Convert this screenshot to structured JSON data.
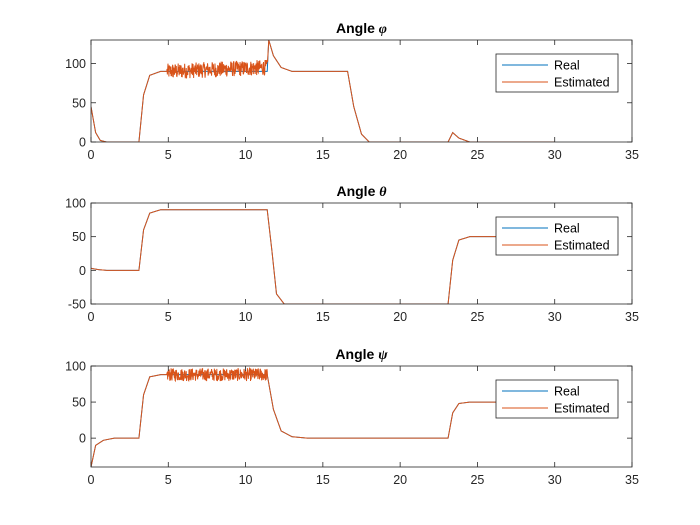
{
  "chart_data": [
    {
      "type": "line",
      "title_prefix": "Angle ",
      "title_symbol": "φ",
      "xlim": [
        0,
        35
      ],
      "ylim": [
        0,
        130
      ],
      "xticks": [
        0,
        5,
        10,
        15,
        20,
        25,
        30,
        35
      ],
      "yticks": [
        0,
        50,
        100
      ],
      "legend": [
        "Real",
        "Estimated"
      ],
      "legend_position": "top-right",
      "series": [
        {
          "name": "Real",
          "color": "#0072BD",
          "x": [
            0,
            0.3,
            0.6,
            1.0,
            3.1,
            3.4,
            3.8,
            4.5,
            5.0,
            11.4,
            11.5,
            11.8,
            12.3,
            13.0,
            16.6,
            17.0,
            17.5,
            18.0,
            23.1,
            23.4,
            23.8,
            24.5,
            30
          ],
          "y": [
            45,
            12,
            2,
            0,
            0,
            60,
            85,
            90,
            90,
            90,
            130,
            110,
            95,
            90,
            90,
            45,
            10,
            0,
            0,
            12,
            5,
            0,
            0
          ]
        },
        {
          "name": "Estimated",
          "color": "#D95319",
          "noise": {
            "x_range": [
              4.9,
              11.4
            ],
            "amplitude": 20
          },
          "x": [
            0,
            0.3,
            0.6,
            1.0,
            3.1,
            3.4,
            3.8,
            4.5,
            5.0,
            11.4,
            11.5,
            11.8,
            12.3,
            13.0,
            16.6,
            17.0,
            17.5,
            18.0,
            23.1,
            23.4,
            23.8,
            24.5,
            30
          ],
          "y": [
            45,
            12,
            2,
            0,
            0,
            60,
            85,
            90,
            90,
            95,
            130,
            110,
            95,
            90,
            90,
            45,
            10,
            0,
            0,
            12,
            5,
            0,
            0
          ]
        }
      ]
    },
    {
      "type": "line",
      "title_prefix": "Angle ",
      "title_symbol": "θ",
      "xlim": [
        0,
        35
      ],
      "ylim": [
        -50,
        100
      ],
      "xticks": [
        0,
        5,
        10,
        15,
        20,
        25,
        30,
        35
      ],
      "yticks": [
        -50,
        0,
        50,
        100
      ],
      "legend": [
        "Real",
        "Estimated"
      ],
      "legend_position": "top-right",
      "series": [
        {
          "name": "Real",
          "color": "#0072BD",
          "x": [
            0,
            0.5,
            1.0,
            3.1,
            3.4,
            3.8,
            4.5,
            11.4,
            11.7,
            12.0,
            12.5,
            23.1,
            23.4,
            23.8,
            24.5,
            30
          ],
          "y": [
            3,
            1,
            0,
            0,
            60,
            85,
            90,
            90,
            30,
            -35,
            -50,
            -50,
            15,
            45,
            50,
            50
          ]
        },
        {
          "name": "Estimated",
          "color": "#D95319",
          "x": [
            0,
            0.5,
            1.0,
            3.1,
            3.4,
            3.8,
            4.5,
            11.4,
            11.7,
            12.0,
            12.5,
            23.1,
            23.4,
            23.8,
            24.5,
            30
          ],
          "y": [
            3,
            1,
            0,
            0,
            60,
            85,
            90,
            90,
            30,
            -35,
            -50,
            -50,
            15,
            45,
            50,
            50
          ]
        }
      ]
    },
    {
      "type": "line",
      "title_prefix": "Angle ",
      "title_symbol": "ψ",
      "xlim": [
        0,
        35
      ],
      "ylim": [
        -40,
        100
      ],
      "xticks": [
        0,
        5,
        10,
        15,
        20,
        25,
        30,
        35
      ],
      "yticks": [
        0,
        50,
        100
      ],
      "legend": [
        "Real",
        "Estimated"
      ],
      "legend_position": "top-right",
      "series": [
        {
          "name": "Real",
          "color": "#0072BD",
          "x": [
            0,
            0.3,
            0.8,
            1.5,
            3.1,
            3.4,
            3.8,
            4.5,
            11.4,
            11.8,
            12.3,
            13.0,
            14.0,
            23.1,
            23.4,
            23.8,
            24.5,
            30
          ],
          "y": [
            -40,
            -10,
            -3,
            0,
            0,
            60,
            85,
            88,
            88,
            40,
            10,
            2,
            0,
            0,
            35,
            48,
            50,
            50
          ]
        },
        {
          "name": "Estimated",
          "color": "#D95319",
          "noise": {
            "x_range": [
              4.9,
              11.4
            ],
            "amplitude": 18
          },
          "x": [
            0,
            0.3,
            0.8,
            1.5,
            3.1,
            3.4,
            3.8,
            4.5,
            11.4,
            11.8,
            12.3,
            13.0,
            14.0,
            23.1,
            23.4,
            23.8,
            24.5,
            30
          ],
          "y": [
            -40,
            -10,
            -3,
            0,
            0,
            60,
            85,
            88,
            88,
            40,
            10,
            2,
            0,
            0,
            35,
            48,
            50,
            50
          ]
        }
      ]
    }
  ]
}
